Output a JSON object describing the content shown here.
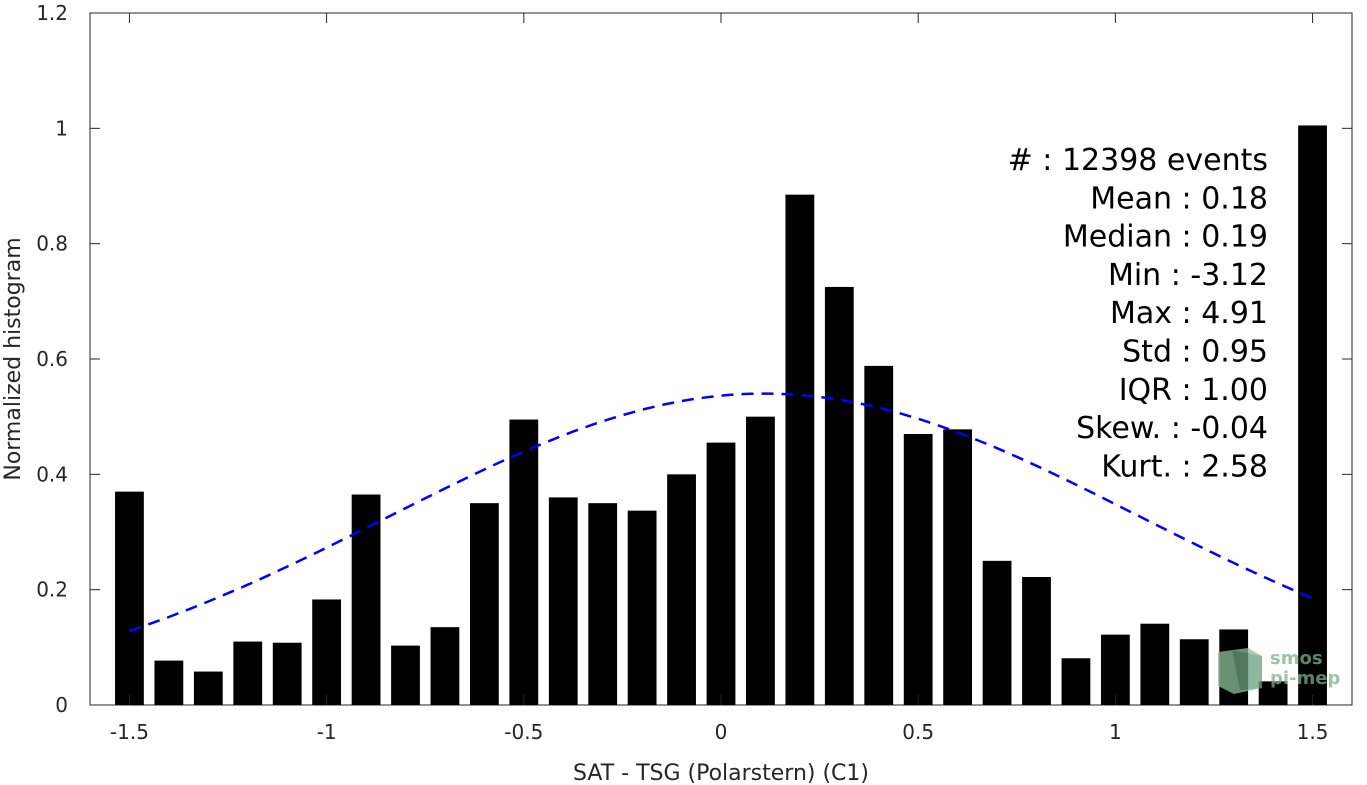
{
  "chart_data": {
    "type": "bar",
    "xlabel": "SAT - TSG (Polarstern) (C1)",
    "ylabel": "Normalized histogram",
    "xlim": [
      -1.6,
      1.6
    ],
    "ylim": [
      0,
      1.2
    ],
    "xticks": [
      -1.5,
      -1,
      -0.5,
      0,
      0.5,
      1,
      1.5
    ],
    "xtick_labels": [
      "-1.5",
      "-1",
      "-0.5",
      "0",
      "0.5",
      "1",
      "1.5"
    ],
    "yticks": [
      0,
      0.2,
      0.4,
      0.6,
      0.8,
      1,
      1.2
    ],
    "ytick_labels": [
      "0",
      "0.2",
      "0.4",
      "0.6",
      "0.8",
      "1",
      "1.2"
    ],
    "bar_color": "#000000",
    "fit_color": "#0000ff",
    "grid": false,
    "bins": [
      -1.5,
      -1.4,
      -1.3,
      -1.2,
      -1.1,
      -1.0,
      -0.9,
      -0.8,
      -0.7,
      -0.6,
      -0.5,
      -0.4,
      -0.3,
      -0.2,
      -0.1,
      0.0,
      0.1,
      0.2,
      0.3,
      0.4,
      0.5,
      0.6,
      0.7,
      0.8,
      0.9,
      1.0,
      1.1,
      1.2,
      1.3,
      1.4,
      1.5
    ],
    "values": [
      0.37,
      0.077,
      0.058,
      0.11,
      0.108,
      0.183,
      0.365,
      0.103,
      0.135,
      0.35,
      0.495,
      0.36,
      0.35,
      0.337,
      0.4,
      0.455,
      0.5,
      0.885,
      0.725,
      0.588,
      0.47,
      0.478,
      0.25,
      0.222,
      0.081,
      0.122,
      0.141,
      0.114,
      0.131,
      0.041,
      1.005
    ],
    "fit": {
      "style": "dashed",
      "mean": 0.11,
      "std": 0.95,
      "peak": 0.54
    },
    "stats": [
      "#  : 12398 events",
      "Mean : 0.18",
      "Median : 0.19",
      "Min : -3.12",
      "Max : 4.91",
      "Std : 0.95",
      "IQR : 1.00",
      "Skew. : -0.04",
      "Kurt. : 2.58"
    ],
    "watermark": [
      "smos",
      "pi-mep"
    ]
  }
}
